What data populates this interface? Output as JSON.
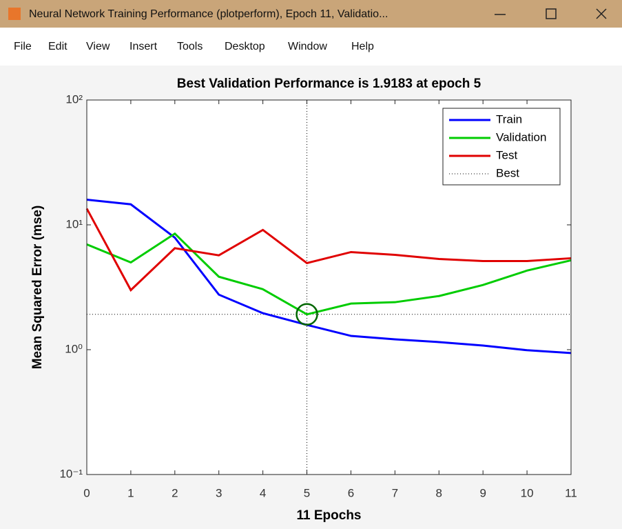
{
  "window": {
    "title": "Neural Network Training Performance (plotperform), Epoch 11, Validatio..."
  },
  "menu": [
    "File",
    "Edit",
    "View",
    "Insert",
    "Tools",
    "Desktop",
    "Window",
    "Help"
  ],
  "chart_data": {
    "type": "line",
    "title": "Best Validation Performance is 1.9183 at epoch 5",
    "xlabel": "11 Epochs",
    "ylabel": "Mean Squared Error  (mse)",
    "x": [
      0,
      1,
      2,
      3,
      4,
      5,
      6,
      7,
      8,
      9,
      10,
      11
    ],
    "xlim": [
      0,
      11
    ],
    "xticks": [
      0,
      1,
      2,
      3,
      4,
      5,
      6,
      7,
      8,
      9,
      10,
      11
    ],
    "ylim": [
      0.1,
      100
    ],
    "yticks": [
      {
        "value": 0.1,
        "label": "10⁻¹"
      },
      {
        "value": 1,
        "label": "10⁰"
      },
      {
        "value": 10,
        "label": "10¹"
      },
      {
        "value": 100,
        "label": "10²"
      }
    ],
    "log_y": true,
    "legend": "top-right",
    "series": [
      {
        "name": "Train",
        "color": "#0000ff",
        "values": [
          15.9,
          14.6,
          7.9,
          2.76,
          1.96,
          1.58,
          1.29,
          1.21,
          1.15,
          1.08,
          0.99,
          0.94
        ]
      },
      {
        "name": "Validation",
        "color": "#00cc00",
        "values": [
          6.97,
          5.0,
          8.5,
          3.84,
          3.05,
          1.9183,
          2.34,
          2.4,
          2.69,
          3.3,
          4.3,
          5.2
        ]
      },
      {
        "name": "Test",
        "color": "#e00000",
        "values": [
          13.5,
          3.0,
          6.5,
          5.7,
          9.1,
          4.94,
          6.05,
          5.75,
          5.33,
          5.13,
          5.13,
          5.4
        ]
      }
    ],
    "best": {
      "name": "Best",
      "epoch": 5,
      "value": 1.9183,
      "color": "#000000"
    }
  }
}
